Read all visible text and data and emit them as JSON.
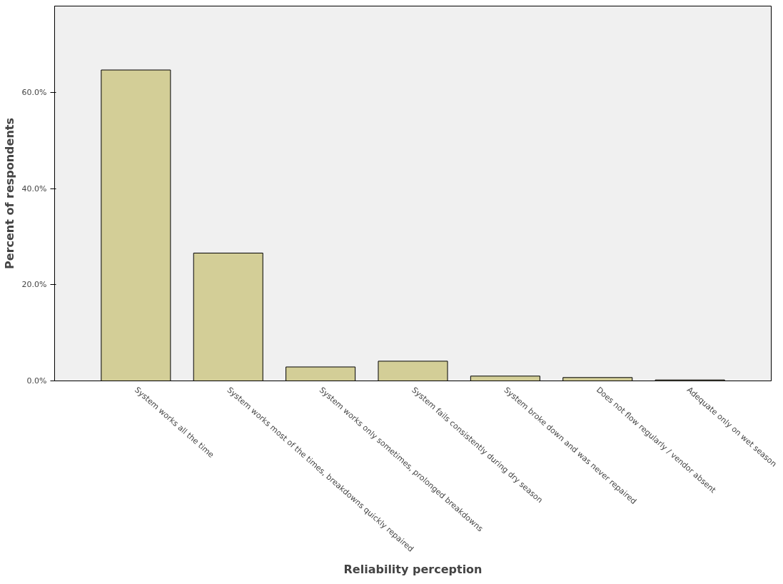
{
  "chart_data": {
    "type": "bar",
    "xlabel": "Reliability perception",
    "ylabel": "Percent of respondents",
    "categories": [
      "System works all the time",
      "System works most of the times, breakdowns quickly repaired",
      "System works only sometimes, prolonged breakdowns",
      "System fails consistently during dry season",
      "System broke down and was never repaired",
      "Does not flow regularly / vendor absent",
      "Adequate only on wet season"
    ],
    "values": [
      64.7,
      26.6,
      2.9,
      4.1,
      1.0,
      0.7,
      0.2
    ],
    "color": "#d3ce97",
    "ylim": [
      0,
      78
    ],
    "yticks": [
      {
        "value": 0,
        "label": "0.0%"
      },
      {
        "value": 20,
        "label": "20.0%"
      },
      {
        "value": 40,
        "label": "40.0%"
      },
      {
        "value": 60,
        "label": "60.0%"
      }
    ],
    "grid": false
  }
}
